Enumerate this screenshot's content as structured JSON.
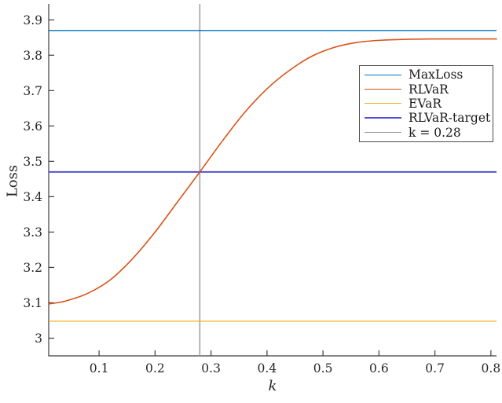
{
  "figure": {
    "background": "#ffffff",
    "axis_color": "#3c3c3c",
    "tick_label_color": "#262626"
  },
  "chart_data": {
    "type": "line",
    "title": "",
    "xlabel": "k",
    "ylabel": "Loss",
    "xlim": [
      0.01,
      0.81
    ],
    "ylim": [
      2.95,
      3.945
    ],
    "x_ticks": [
      0.1,
      0.2,
      0.3,
      0.4,
      0.5,
      0.6,
      0.7,
      0.8
    ],
    "y_ticks": [
      3,
      3.1,
      3.2,
      3.3,
      3.4,
      3.5,
      3.6,
      3.7,
      3.8,
      3.9
    ],
    "grid": false,
    "legend_position": "upper right",
    "series": [
      {
        "name": "MaxLoss",
        "type": "hline",
        "value": 3.87,
        "color": "#0072BD"
      },
      {
        "name": "RLVaR",
        "type": "curve",
        "color": "#D95319",
        "x": [
          0.01,
          0.04,
          0.08,
          0.12,
          0.16,
          0.2,
          0.24,
          0.28,
          0.32,
          0.36,
          0.4,
          0.44,
          0.48,
          0.52,
          0.56,
          0.6,
          0.65,
          0.7,
          0.75,
          0.81
        ],
        "y": [
          3.097,
          3.105,
          3.127,
          3.165,
          3.225,
          3.3,
          3.385,
          3.47,
          3.557,
          3.638,
          3.705,
          3.757,
          3.797,
          3.822,
          3.836,
          3.842,
          3.845,
          3.846,
          3.846,
          3.846
        ]
      },
      {
        "name": "EVaR",
        "type": "hline",
        "value": 3.048,
        "color": "#EDB120"
      },
      {
        "name": "RLVaR-target",
        "type": "hline",
        "value": 3.47,
        "color": "#5353D1"
      },
      {
        "name": "k = 0.28",
        "type": "vline",
        "value": 0.28,
        "color": "#969696"
      }
    ],
    "annotations": {
      "intersection": "RLVaR curve crosses RLVaR-target (3.47) at k = 0.28"
    }
  }
}
